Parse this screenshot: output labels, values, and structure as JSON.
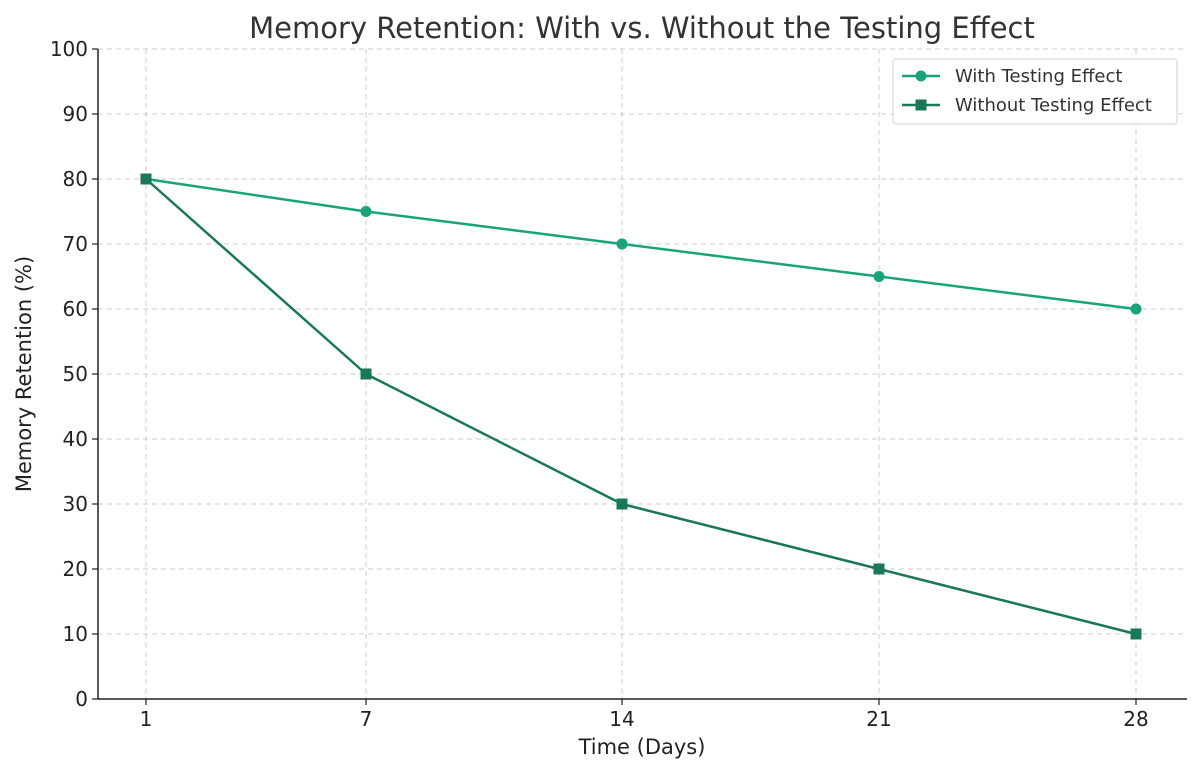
{
  "chart_data": {
    "type": "line",
    "title": "Memory Retention: With vs. Without the Testing Effect",
    "xlabel": "Time (Days)",
    "ylabel": "Memory Retention (%)",
    "x": [
      1,
      7,
      14,
      21,
      28
    ],
    "xticks": [
      "1",
      "7",
      "14",
      "21",
      "28"
    ],
    "ylim": [
      0,
      100
    ],
    "yticks": [
      0,
      10,
      20,
      30,
      40,
      50,
      60,
      70,
      80,
      90,
      100
    ],
    "grid": true,
    "legend_position": "top-right",
    "series": [
      {
        "name": "With Testing Effect",
        "values": [
          80,
          75,
          70,
          65,
          60
        ],
        "color": "#18a37a",
        "marker": "circle"
      },
      {
        "name": "Without Testing Effect",
        "values": [
          80,
          50,
          30,
          20,
          10
        ],
        "color": "#187859",
        "marker": "square"
      }
    ]
  }
}
